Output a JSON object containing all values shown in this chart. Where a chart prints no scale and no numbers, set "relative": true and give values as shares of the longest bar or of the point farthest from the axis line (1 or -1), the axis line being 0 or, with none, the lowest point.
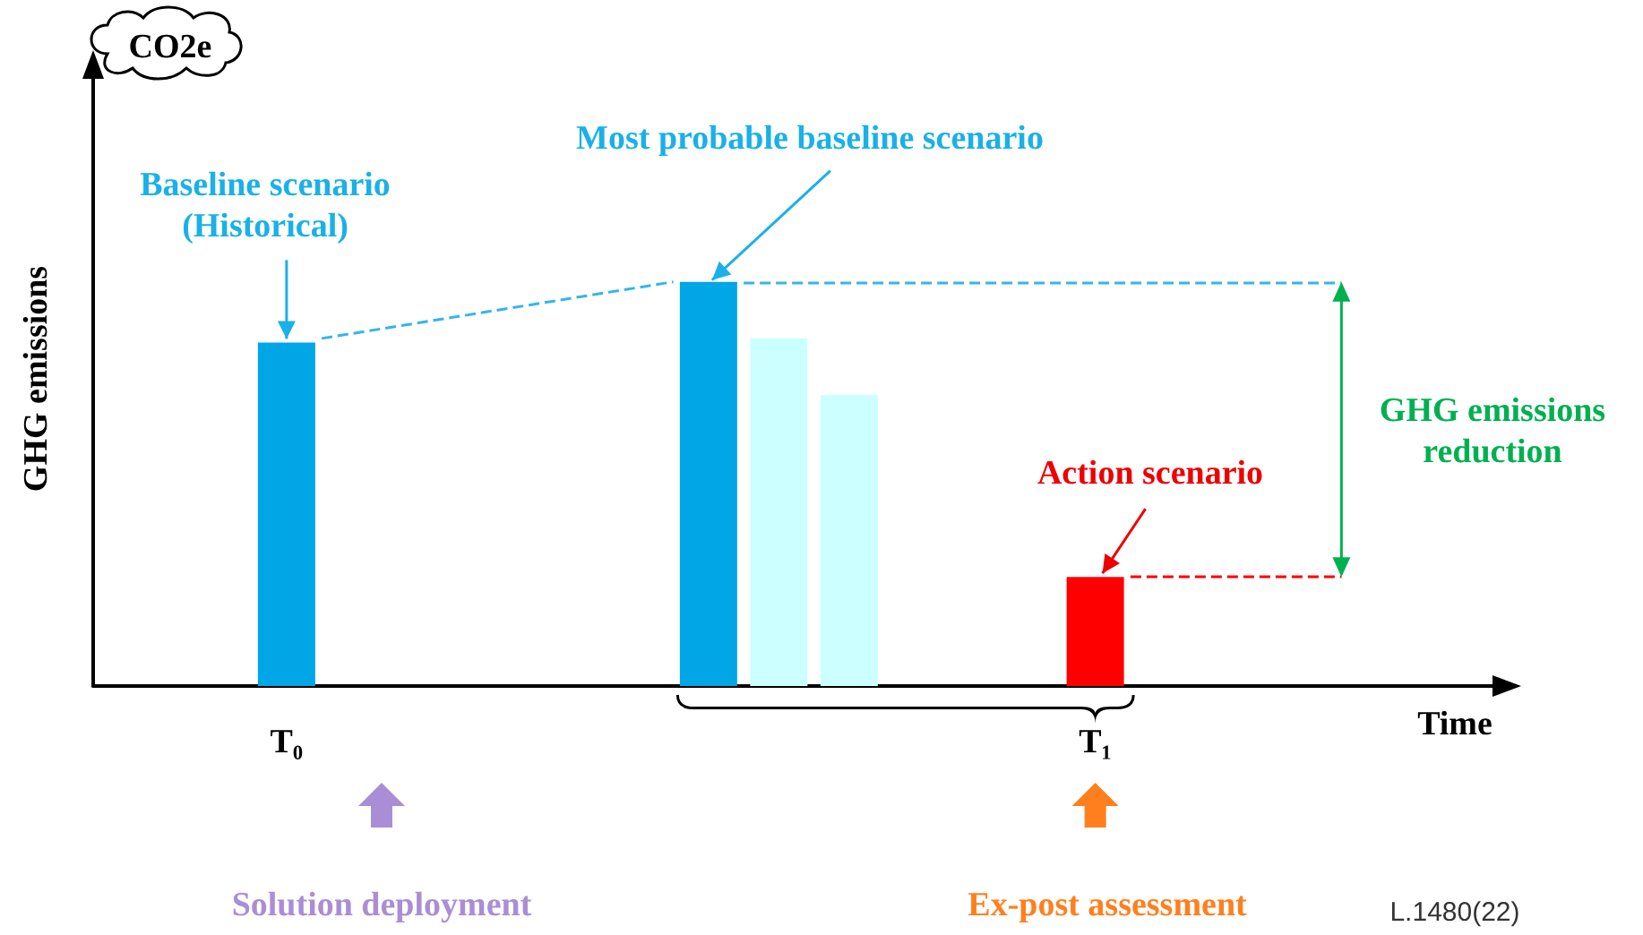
{
  "chart_data": {
    "type": "bar",
    "relative": true,
    "xlabel": "Time",
    "ylabel": "GHG emissions",
    "categories": [
      null,
      null,
      null,
      null,
      null,
      "T₀",
      null,
      null,
      null,
      null,
      null,
      null,
      null,
      null,
      null,
      null,
      null,
      null,
      null,
      null,
      null,
      null,
      null,
      null,
      null,
      null,
      null,
      null,
      "T₁",
      null,
      null,
      null,
      null,
      null,
      null,
      null,
      null,
      null,
      null,
      null
    ],
    "series": [
      {
        "values": [
          null,
          null,
          null,
          null,
          null,
          0.85,
          null,
          null,
          null,
          null,
          null,
          null,
          null,
          null,
          null,
          null,
          null,
          1,
          null,
          0.86,
          null,
          0.72,
          null,
          null,
          null,
          null,
          null,
          null,
          0.27,
          null,
          null,
          null,
          null,
          null,
          null,
          null,
          null,
          null,
          null,
          null
        ],
        "colors": [
          null,
          null,
          null,
          null,
          null,
          "#00a6e6",
          null,
          null,
          null,
          null,
          null,
          null,
          null,
          null,
          null,
          null,
          null,
          "#00a6e6",
          null,
          "#ccffff",
          null,
          "#ccffff",
          null,
          null,
          null,
          null,
          null,
          null,
          "#ff0000",
          null,
          null,
          null,
          null,
          null,
          null,
          null,
          null,
          null,
          null,
          null
        ]
      },
      {
        "type": "line",
        "color": "#33b5ee",
        "line_style": "dashed",
        "marker": "none",
        "values": [
          null,
          null,
          null,
          null,
          null,
          null,
          0.86,
          null,
          null,
          null,
          null,
          null,
          null,
          null,
          null,
          null,
          1,
          null,
          null,
          null,
          null,
          null,
          null,
          null,
          null,
          null,
          null,
          null,
          null,
          null,
          null,
          null,
          null,
          null,
          null,
          null,
          null,
          null,
          null,
          null
        ]
      }
    ],
    "ref_lines": [
      {
        "axis": "y",
        "value": 1,
        "color": "#33b5ee",
        "line_style": "dashed"
      },
      {
        "axis": "y",
        "value": 0.27,
        "color": "#ff0000",
        "line_style": "dashed"
      }
    ],
    "annotations": [
      "CO2e",
      "Baseline scenario (Historical)",
      "Most probable baseline scenario",
      "Action scenario",
      "GHG emissions reduction",
      "Solution deployment",
      "Ex-post assessment",
      "L.1480(22)"
    ],
    "grid": false
  }
}
